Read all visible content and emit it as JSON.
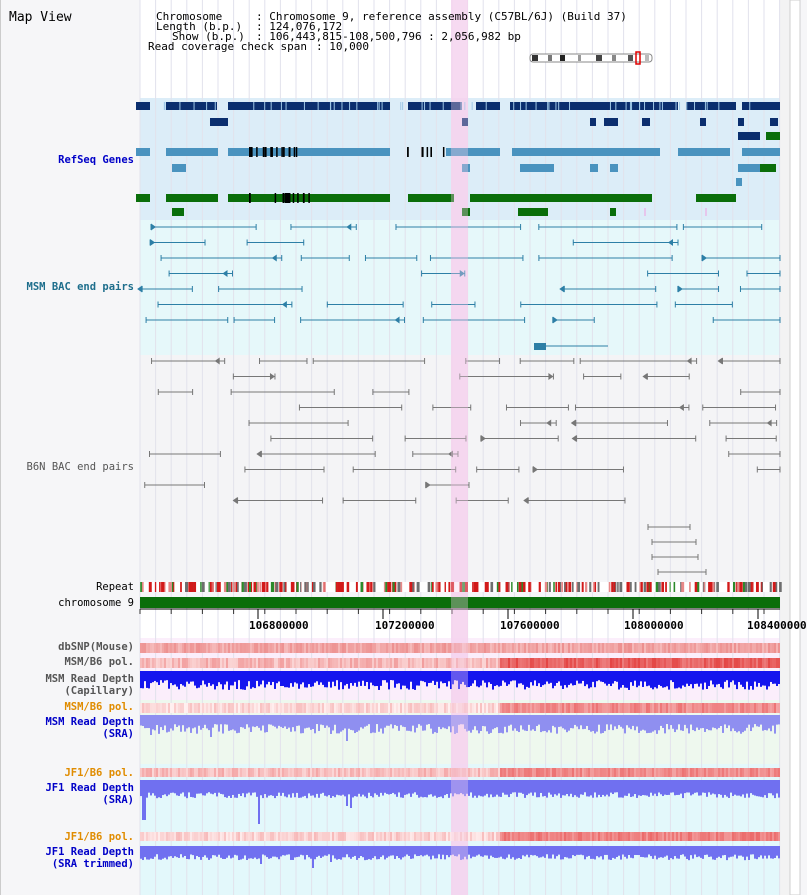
{
  "map_title": "Map View",
  "info": {
    "chromosome_key": "Chromosome",
    "chromosome_val": ": Chromosome 9, reference assembly (C57BL/6J) (Build 37)",
    "length_key": "Length (b.p.)",
    "length_val": ": 124,076,172",
    "show_key": "Show (b.p.)",
    "show_val": ": 106,443,815-108,500,796 : 2,056,982 bp",
    "coverage_key": "Read coverage check span",
    "coverage_val": ": 10,000"
  },
  "tracks": {
    "refseq": "RefSeq Genes",
    "msm_bac": "MSM BAC end pairs",
    "b6n_bac": "B6N BAC end pairs",
    "repeat": "Repeat",
    "chromosome": "chromosome 9",
    "dbsnp": "dbSNP(Mouse)",
    "msm_b6_pol_1": "MSM/B6 pol.",
    "msm_depth_cap_1": "MSM Read Depth",
    "msm_depth_cap_2": "(Capillary)",
    "msm_b6_pol_2": "MSM/B6 pol.",
    "msm_depth_sra_1": "MSM Read Depth",
    "msm_depth_sra_2": "(SRA)",
    "jf1_b6_pol_1": "JF1/B6 pol.",
    "jf1_depth_sra_1": "JF1 Read Depth",
    "jf1_depth_sra_2": "(SRA)",
    "jf1_b6_pol_2": "JF1/B6 pol.",
    "jf1_depth_trim_1": "JF1 Read Depth",
    "jf1_depth_trim_2": "(SRA trimmed)"
  },
  "axis_ticks": [
    "106800000",
    "107200000",
    "107600000",
    "108000000",
    "108400000"
  ],
  "colors": {
    "refseq_dark": "#0b2e6e",
    "refseq_mid": "#4a93bf",
    "refseq_green": "#0a6e0a",
    "msm_bac": "#2d7fa6",
    "b6n_bac": "#777777",
    "highlight": "#f5d3ef",
    "label_blue": "#0000c8",
    "label_teal": "#1e6e8c",
    "label_orange": "#e08c00"
  }
}
